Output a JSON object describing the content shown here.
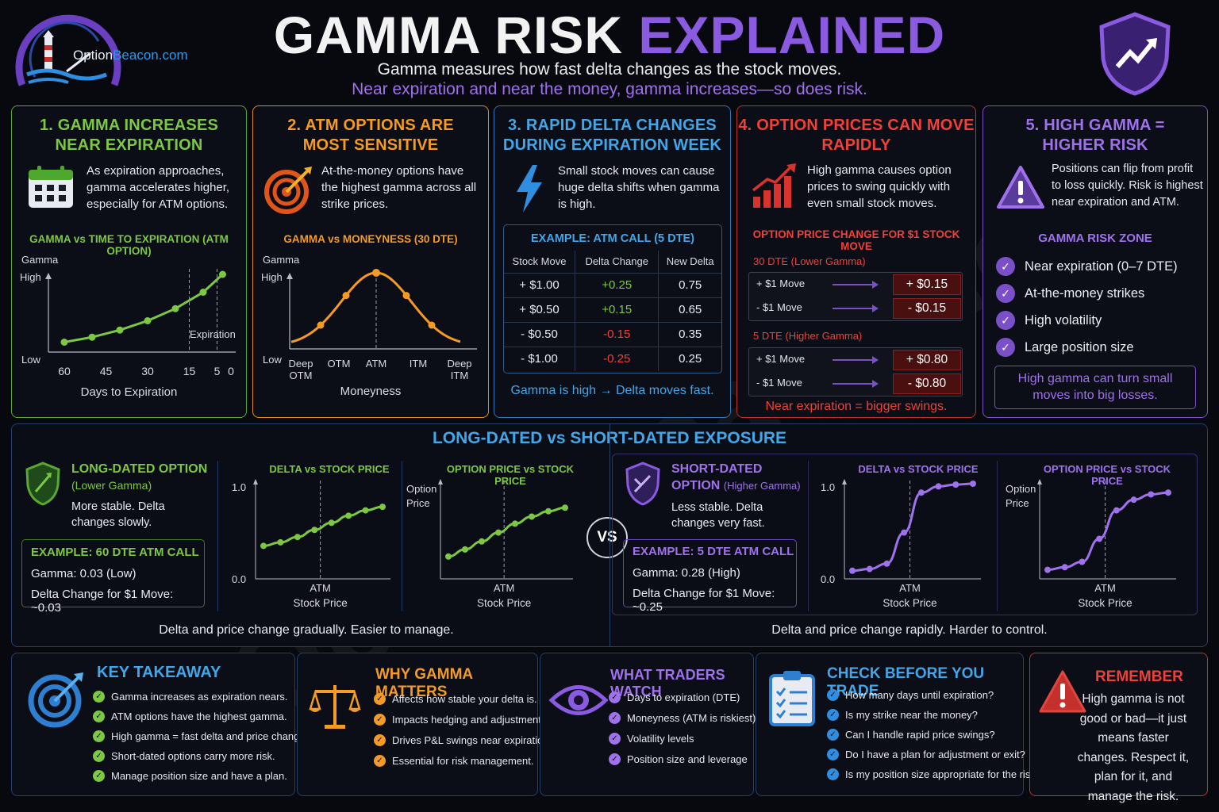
{
  "logo": {
    "brand_a": "Option",
    "brand_b": "Beacon",
    "brand_c": ".com"
  },
  "header": {
    "title_a": "GAMMA RISK",
    "title_b": "EXPLAINED",
    "subtitle": "Gamma measures how fast delta changes as the stock moves.",
    "subtitle2": "Near expiration and near the money, gamma increases—so does risk."
  },
  "watermark": "OptionBeacon.com",
  "colors": {
    "green": "#7cc843",
    "orange": "#f59a22",
    "blue": "#42a6e8",
    "red": "#f0403a",
    "purple": "#a071ec"
  },
  "panel1": {
    "title1": "1. GAMMA INCREASES",
    "title2": "NEAR EXPIRATION",
    "text": "As expiration approaches, gamma accelerates higher, especially for ATM options.",
    "icon": "calendar-icon",
    "chart_title": "GAMMA vs TIME TO EXPIRATION (ATM OPTION)",
    "ylabel": "Gamma",
    "y_high": "High",
    "y_low": "Low",
    "xlabel": "Days to Expiration",
    "annotation": "Expiration"
  },
  "panel2": {
    "title1": "2. ATM OPTIONS ARE",
    "title2": "MOST SENSITIVE",
    "text": "At-the-money options have the highest gamma across all strike prices.",
    "icon": "target-icon",
    "chart_title": "GAMMA vs MONEYNESS (30 DTE)",
    "ylabel": "Gamma",
    "y_high": "High",
    "y_low": "Low",
    "xlabel": "Moneyness"
  },
  "panel3": {
    "title1": "3. RAPID DELTA CHANGES",
    "title2": "DURING EXPIRATION WEEK",
    "text": "Small stock moves can cause huge delta shifts when gamma is high.",
    "icon": "lightning-icon",
    "table_title": "EXAMPLE: ATM CALL (5 DTE)",
    "headers": [
      "Stock Move",
      "Delta Change",
      "New Delta"
    ],
    "rows": [
      {
        "move": "+ $1.00",
        "change": "+0.25",
        "delta": "0.75"
      },
      {
        "move": "+ $0.50",
        "change": "+0.15",
        "delta": "0.65"
      },
      {
        "move": "- $0.50",
        "change": "-0.15",
        "delta": "0.35"
      },
      {
        "move": "- $1.00",
        "change": "-0.25",
        "delta": "0.25"
      }
    ],
    "footer": "Gamma is high → Delta moves fast."
  },
  "panel4": {
    "title1": "4. OPTION PRICES CAN MOVE",
    "title2": "RAPIDLY",
    "text": "High gamma causes option prices to swing quickly with even small stock moves.",
    "icon": "bar-chart-up-icon",
    "sub_title": "OPTION PRICE CHANGE FOR $1 STOCK MOVE",
    "group1": "30 DTE (Lower Gamma)",
    "group1_rows": [
      {
        "move": "+ $1 Move",
        "value": "+ $0.15"
      },
      {
        "move": "- $1 Move",
        "value": "- $0.15"
      }
    ],
    "group2": "5 DTE (Higher Gamma)",
    "group2_rows": [
      {
        "move": "+ $1 Move",
        "value": "+ $0.80"
      },
      {
        "move": "- $1 Move",
        "value": "- $0.80"
      }
    ],
    "footer": "Near expiration = bigger swings."
  },
  "panel5": {
    "title1": "5. HIGH GAMMA =",
    "title2": "HIGHER RISK",
    "text": "Positions can flip from profit to loss quickly. Risk is highest near expiration and ATM.",
    "icon": "warning-triangle-icon",
    "zone_title": "GAMMA RISK ZONE",
    "items": [
      "Near expiration (0–7 DTE)",
      "At-the-money strikes",
      "High volatility",
      "Large position size"
    ],
    "callout": "High gamma can turn small moves into big losses."
  },
  "exposure": {
    "title": "LONG-DATED vs SHORT-DATED EXPOSURE",
    "vs": "VS",
    "long": {
      "title1": "LONG-DATED OPTION",
      "title2": "(Lower Gamma)",
      "text": "More stable. Delta changes slowly.",
      "example_title": "EXAMPLE: 60 DTE ATM CALL",
      "gamma": "Gamma: 0.03 (Low)",
      "delta_change": "Delta Change for $1 Move: ~0.03",
      "chart1_title": "DELTA vs STOCK PRICE",
      "chart2_title": "OPTION PRICE vs STOCK PRICE",
      "footer": "Delta and price change gradually. Easier to manage."
    },
    "short": {
      "title1": "SHORT-DATED",
      "title1b": "OPTION",
      "title2": "(Higher Gamma)",
      "text": "Less stable. Delta changes very fast.",
      "example_title": "EXAMPLE: 5 DTE ATM CALL",
      "gamma": "Gamma: 0.28 (High)",
      "delta_change": "Delta Change for $1 Move: ~0.25",
      "chart1_title": "DELTA vs STOCK PRICE",
      "chart2_title": "OPTION PRICE vs STOCK PRICE",
      "footer": "Delta and price change rapidly. Harder to control."
    },
    "y_top": "1.0",
    "y_bot": "0.0",
    "x_atm": "ATM",
    "x_label": "Stock Price",
    "y_price_a": "Option",
    "y_price_b": "Price"
  },
  "bottom": {
    "takeaway": {
      "title": "KEY TAKEAWAY",
      "icon": "target-icon",
      "items": [
        "Gamma increases as expiration nears.",
        "ATM options have the highest gamma.",
        "High gamma = fast delta and price changes.",
        "Short-dated options carry more risk.",
        "Manage position size and have a plan."
      ]
    },
    "why": {
      "title": "WHY GAMMA MATTERS",
      "icon": "scale-icon",
      "items": [
        "Affects how stable your delta is.",
        "Impacts hedging and adjustments.",
        "Drives P&L swings near expiration.",
        "Essential for risk management."
      ]
    },
    "watch": {
      "title": "WHAT TRADERS WATCH",
      "icon": "eye-icon",
      "items": [
        "Days to expiration (DTE)",
        "Moneyness (ATM is riskiest)",
        "Volatility levels",
        "Position size and leverage"
      ]
    },
    "check": {
      "title": "CHECK BEFORE YOU TRADE",
      "icon": "clipboard-icon",
      "items": [
        "How many days until expiration?",
        "Is my strike near the money?",
        "Can I handle rapid price swings?",
        "Do I have a plan for adjustment or exit?",
        "Is my position size appropriate for the risk?"
      ]
    },
    "remember": {
      "title": "REMEMBER",
      "icon": "warning-triangle-icon",
      "text": "High gamma is not good or bad—it just means faster changes. Respect it, plan for it, and manage the risk."
    }
  },
  "chart_data": [
    {
      "type": "line",
      "title": "GAMMA vs TIME TO EXPIRATION (ATM OPTION)",
      "xlabel": "Days to Expiration",
      "ylabel": "Gamma",
      "x": [
        60,
        45,
        30,
        15,
        5,
        0
      ],
      "x_ticks": [
        "60",
        "45",
        "30",
        "15",
        "5",
        "0"
      ],
      "points_x": [
        60,
        50,
        40,
        30,
        20,
        10,
        3
      ],
      "points_y": [
        0.05,
        0.12,
        0.22,
        0.35,
        0.52,
        0.75,
        1.0
      ],
      "y_range": [
        0,
        1
      ]
    },
    {
      "type": "line",
      "title": "GAMMA vs MONEYNESS (30 DTE)",
      "xlabel": "Moneyness",
      "ylabel": "Gamma",
      "categories": [
        "Deep OTM",
        "OTM",
        "ATM",
        "ITM",
        "Deep ITM"
      ],
      "points_y": [
        0.08,
        0.3,
        0.62,
        1.0,
        0.62,
        0.3,
        0.08
      ],
      "y_range": [
        0,
        1
      ]
    },
    {
      "type": "line",
      "title": "DELTA vs STOCK PRICE (Long-Dated)",
      "y_range": [
        0,
        1
      ],
      "values": [
        0.3,
        0.34,
        0.4,
        0.48,
        0.56,
        0.64,
        0.7,
        0.74
      ]
    },
    {
      "type": "line",
      "title": "OPTION PRICE vs STOCK PRICE (Long-Dated)",
      "y_range": [
        0,
        1
      ],
      "values": [
        0.18,
        0.26,
        0.35,
        0.45,
        0.55,
        0.63,
        0.69,
        0.73
      ]
    },
    {
      "type": "line",
      "title": "DELTA vs STOCK PRICE (Short-Dated)",
      "y_range": [
        0,
        1
      ],
      "values": [
        0.02,
        0.04,
        0.1,
        0.45,
        0.9,
        0.97,
        0.99,
        1.0
      ]
    },
    {
      "type": "line",
      "title": "OPTION PRICE vs STOCK PRICE (Short-Dated)",
      "y_range": [
        0,
        1
      ],
      "values": [
        0.03,
        0.06,
        0.12,
        0.38,
        0.7,
        0.82,
        0.88,
        0.9
      ]
    }
  ]
}
